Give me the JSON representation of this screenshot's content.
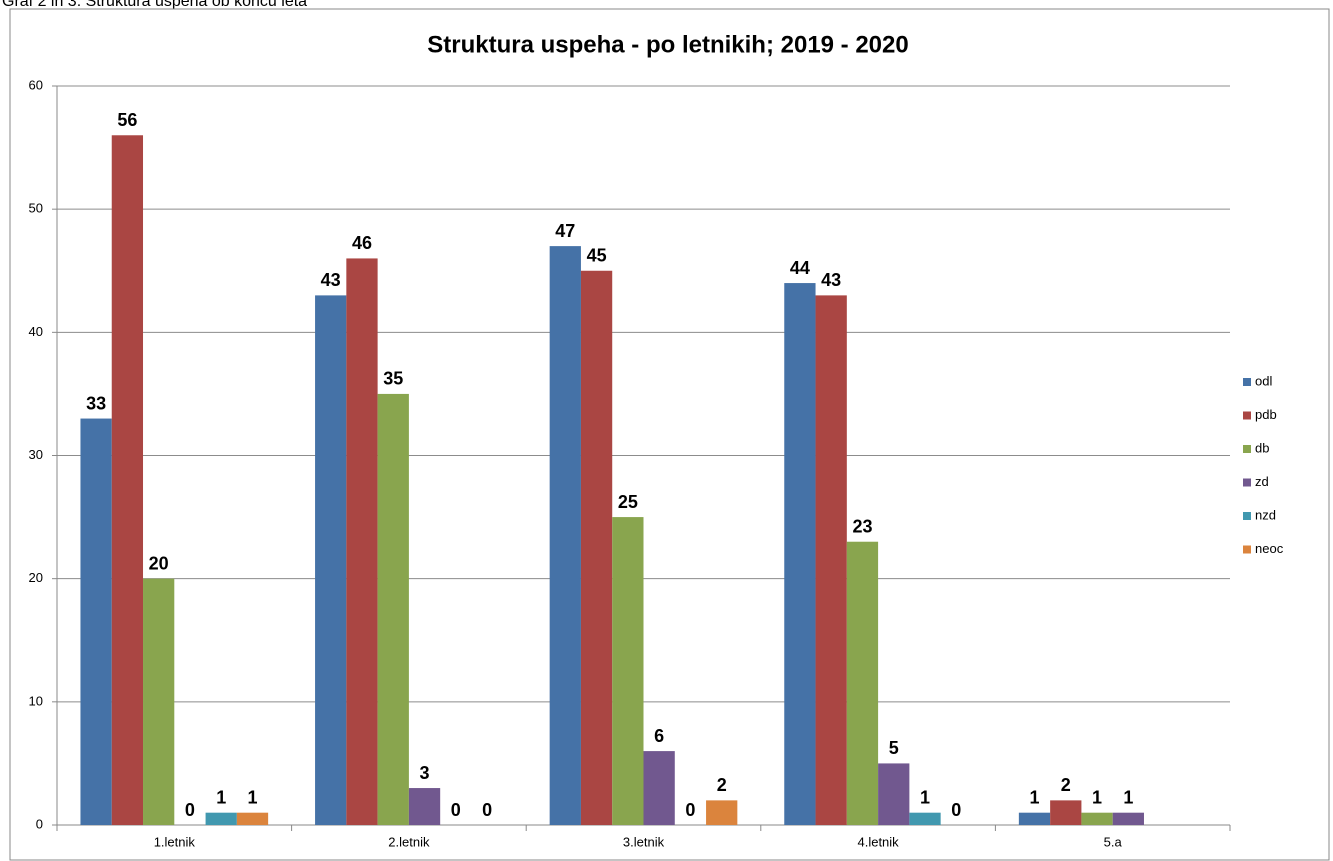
{
  "caption": "Graf 2 in 3: Struktura uspeha ob koncu leta",
  "chart_data": {
    "type": "bar",
    "title": "Struktura uspeha - po letnikih; 2019 - 2020",
    "categories": [
      "1.letnik",
      "2.letnik",
      "3.letnik",
      "4.letnik",
      "5.a"
    ],
    "series": [
      {
        "name": "odl",
        "color": "#4572a7",
        "values": [
          33,
          43,
          47,
          44,
          1
        ]
      },
      {
        "name": "pdb",
        "color": "#aa4643",
        "values": [
          56,
          46,
          45,
          43,
          2
        ]
      },
      {
        "name": "db",
        "color": "#89a54e",
        "values": [
          20,
          35,
          25,
          23,
          1
        ]
      },
      {
        "name": "zd",
        "color": "#71588f",
        "values": [
          0,
          3,
          6,
          5,
          1
        ]
      },
      {
        "name": "nzd",
        "color": "#4198af",
        "values": [
          1,
          0,
          0,
          1,
          null
        ]
      },
      {
        "name": "neoc",
        "color": "#db843d",
        "values": [
          1,
          0,
          2,
          0,
          null
        ]
      }
    ],
    "ylim": [
      0,
      60
    ],
    "yticks": [
      0,
      10,
      20,
      30,
      40,
      50,
      60
    ],
    "grid": true,
    "legend": "right"
  }
}
